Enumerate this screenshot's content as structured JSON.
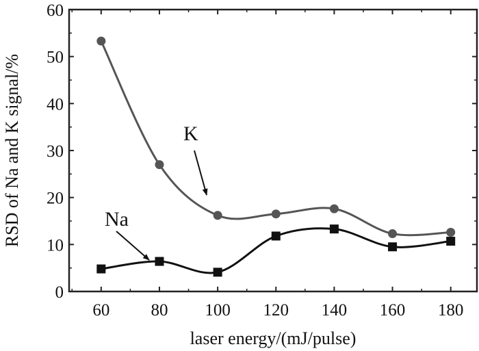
{
  "chart_data": {
    "type": "line",
    "title": "",
    "xlabel": "laser energy/(mJ/pulse)",
    "ylabel": "RSD of Na and K signal/%",
    "xlim": [
      49,
      189
    ],
    "ylim": [
      0,
      60
    ],
    "xticks": [
      60,
      80,
      100,
      120,
      140,
      160,
      180
    ],
    "yticks": [
      0,
      10,
      20,
      30,
      40,
      50,
      60
    ],
    "grid": false,
    "legend": "none",
    "x": [
      60,
      80,
      100,
      120,
      140,
      160,
      180
    ],
    "series": [
      {
        "name": "K",
        "marker": "circle",
        "color": "#555555",
        "values": [
          53.3,
          27.0,
          16.2,
          16.5,
          17.6,
          12.3,
          12.6
        ]
      },
      {
        "name": "Na",
        "marker": "square",
        "color": "#111111",
        "values": [
          4.8,
          6.4,
          4.1,
          11.8,
          13.3,
          9.5,
          10.7
        ]
      }
    ],
    "annotations": [
      {
        "text": "K",
        "points_to_series": "K",
        "at_x": 100
      },
      {
        "text": "Na",
        "points_to_series": "Na",
        "at_x": 75
      }
    ]
  }
}
